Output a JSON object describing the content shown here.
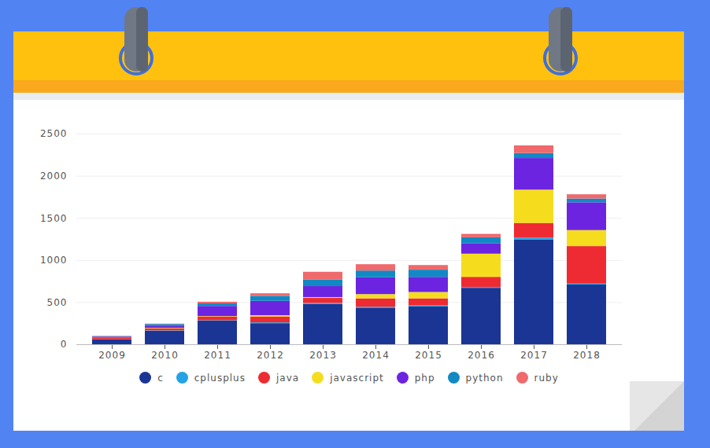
{
  "chart_data": {
    "type": "bar",
    "stacked": true,
    "categories": [
      "2009",
      "2010",
      "2011",
      "2012",
      "2013",
      "2014",
      "2015",
      "2016",
      "2017",
      "2018"
    ],
    "series": [
      {
        "name": "c",
        "color": "#1b3595",
        "values": [
          60,
          160,
          280,
          250,
          480,
          435,
          450,
          670,
          1245,
          710
        ]
      },
      {
        "name": "cplusplus",
        "color": "#23a3e6",
        "values": [
          0,
          5,
          5,
          10,
          10,
          10,
          10,
          10,
          20,
          10
        ]
      },
      {
        "name": "java",
        "color": "#ee2b32",
        "values": [
          20,
          25,
          45,
          70,
          60,
          100,
          85,
          120,
          175,
          445
        ]
      },
      {
        "name": "javascript",
        "color": "#f5dd1e",
        "values": [
          0,
          5,
          5,
          15,
          10,
          50,
          75,
          275,
          395,
          190
        ]
      },
      {
        "name": "php",
        "color": "#6c24e1",
        "values": [
          10,
          20,
          120,
          170,
          130,
          200,
          180,
          125,
          375,
          330
        ]
      },
      {
        "name": "python",
        "color": "#1189c4",
        "values": [
          5,
          25,
          30,
          60,
          80,
          80,
          85,
          70,
          60,
          45
        ]
      },
      {
        "name": "ruby",
        "color": "#f0696c",
        "values": [
          5,
          5,
          20,
          30,
          90,
          75,
          55,
          40,
          90,
          50
        ]
      }
    ],
    "ylim": [
      0,
      2500
    ],
    "yticks": [
      0,
      500,
      1000,
      1500,
      2000,
      2500
    ],
    "grid": true,
    "legend": "bottom"
  }
}
